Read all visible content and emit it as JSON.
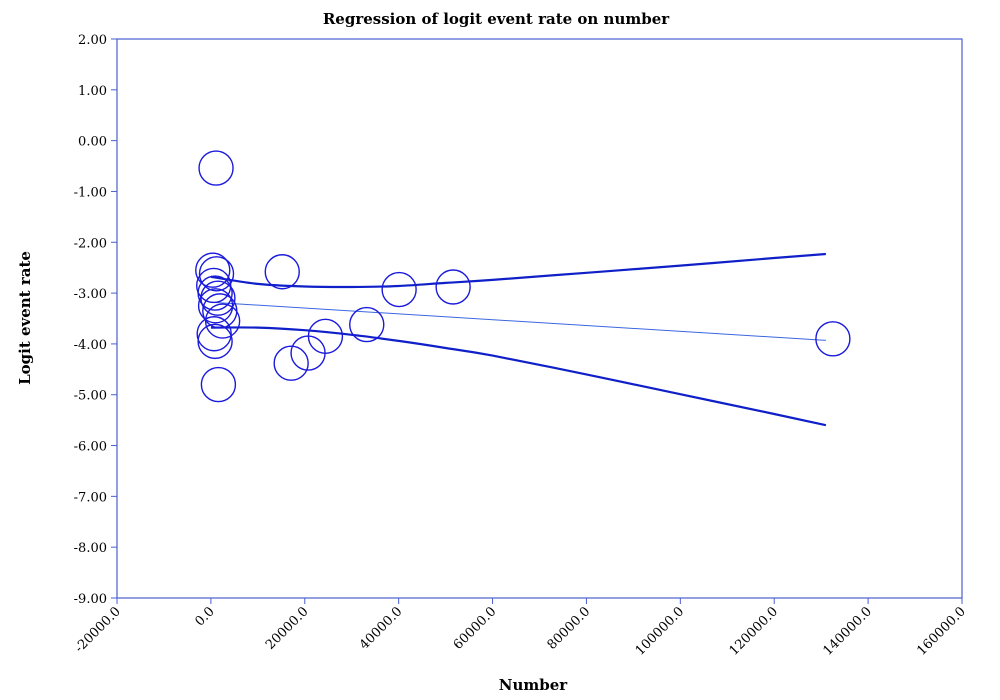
{
  "chart_data": {
    "type": "scatter",
    "title": "Regression of logit event rate on number",
    "xlabel": "Number",
    "ylabel": "Logit event rate",
    "xlim": [
      -20000,
      160000
    ],
    "ylim": [
      -9,
      2
    ],
    "x_ticks": [
      -20000,
      0,
      20000,
      40000,
      60000,
      80000,
      100000,
      120000,
      140000,
      160000
    ],
    "x_tick_labels": [
      "-20000.0",
      "0.0",
      "20000.0",
      "40000.0",
      "60000.0",
      "80000.0",
      "100000.0",
      "120000.0",
      "140000.0",
      "160000.0"
    ],
    "y_ticks": [
      2,
      1,
      0,
      -1,
      -2,
      -3,
      -4,
      -5,
      -6,
      -7,
      -8,
      -9
    ],
    "y_tick_labels": [
      "2.00",
      "1.00",
      "0.00",
      "-1.00",
      "-2.00",
      "-3.00",
      "-4.00",
      "-5.00",
      "-6.00",
      "-7.00",
      "-8.00",
      "-9.00"
    ],
    "grid": false,
    "colors": {
      "marker": "#1a1adc",
      "axis": "#4a5fd0",
      "regression": "#3a66e0",
      "ci": "#1020c8"
    },
    "points": [
      {
        "x": 1100,
        "y": -0.54
      },
      {
        "x": 400,
        "y": -2.55
      },
      {
        "x": 1200,
        "y": -2.62
      },
      {
        "x": 600,
        "y": -2.85
      },
      {
        "x": 900,
        "y": -3.0
      },
      {
        "x": 1500,
        "y": -3.1
      },
      {
        "x": 1000,
        "y": -3.25
      },
      {
        "x": 1900,
        "y": -3.35
      },
      {
        "x": 2500,
        "y": -3.55
      },
      {
        "x": 700,
        "y": -3.8
      },
      {
        "x": 900,
        "y": -3.95
      },
      {
        "x": 1600,
        "y": -4.8
      },
      {
        "x": 15200,
        "y": -2.58
      },
      {
        "x": 17100,
        "y": -4.38
      },
      {
        "x": 20700,
        "y": -4.18
      },
      {
        "x": 24400,
        "y": -3.85
      },
      {
        "x": 33200,
        "y": -3.62
      },
      {
        "x": 40100,
        "y": -2.93
      },
      {
        "x": 51600,
        "y": -2.88
      },
      {
        "x": 132500,
        "y": -3.9
      }
    ],
    "regression_line": {
      "x": [
        0,
        131000
      ],
      "y": [
        -3.18,
        -3.93
      ]
    },
    "ci_upper": {
      "x": [
        0,
        10000,
        20000,
        30000,
        40000,
        50000,
        60000,
        80000,
        100000,
        120000,
        131000
      ],
      "y": [
        -2.68,
        -2.82,
        -2.87,
        -2.88,
        -2.86,
        -2.8,
        -2.74,
        -2.6,
        -2.46,
        -2.31,
        -2.23
      ]
    },
    "ci_lower": {
      "x": [
        0,
        10000,
        20000,
        30000,
        40000,
        50000,
        60000,
        80000,
        100000,
        120000,
        131000
      ],
      "y": [
        -3.68,
        -3.68,
        -3.73,
        -3.82,
        -3.94,
        -4.08,
        -4.23,
        -4.6,
        -4.99,
        -5.38,
        -5.6
      ]
    }
  }
}
